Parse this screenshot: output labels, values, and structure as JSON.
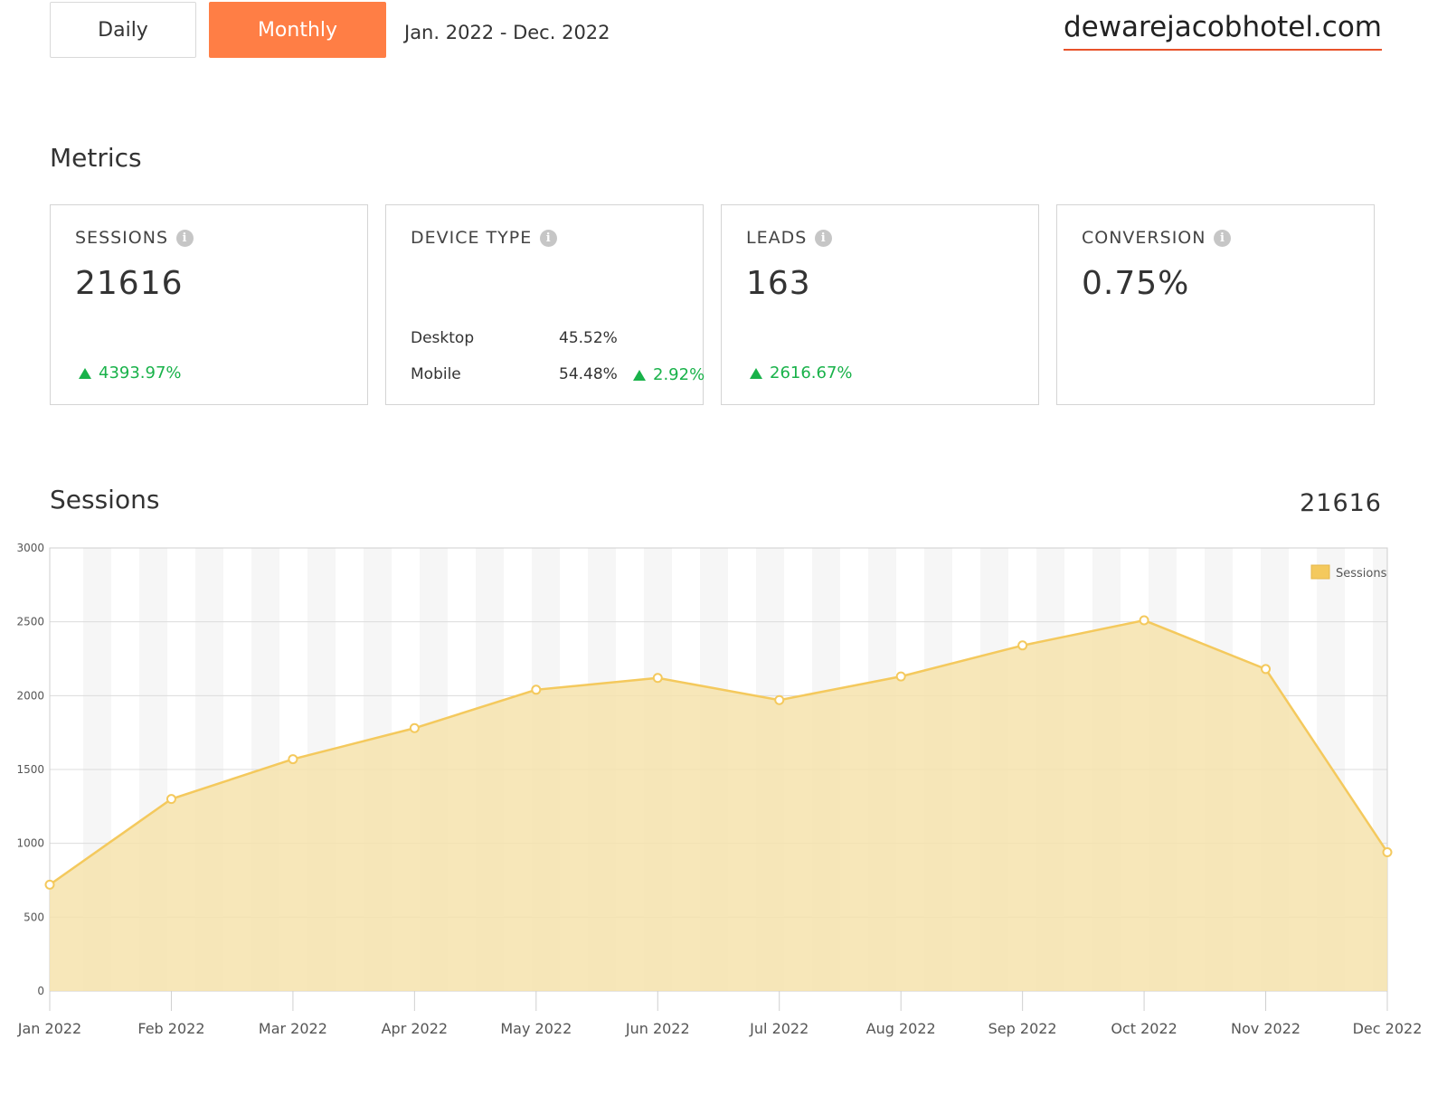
{
  "toolbar": {
    "daily_label": "Daily",
    "monthly_label": "Monthly",
    "date_range": "Jan. 2022 - Dec. 2022",
    "site": "dewarejacobhotel.com",
    "active_color": "#ff7e45",
    "underline_color": "#e8522a"
  },
  "metrics": {
    "title": "Metrics",
    "sessions": {
      "label": "SESSIONS",
      "value": "21616",
      "change": "4393.97%"
    },
    "device": {
      "label": "DEVICE TYPE",
      "desktop_label": "Desktop",
      "desktop_value": "45.52%",
      "mobile_label": "Mobile",
      "mobile_value": "54.48%",
      "mobile_change": "2.92%"
    },
    "leads": {
      "label": "LEADS",
      "value": "163",
      "change": "2616.67%"
    },
    "conversion": {
      "label": "CONVERSION",
      "value": "0.75%"
    },
    "up_color": "#19b24a"
  },
  "sessions_section": {
    "title": "Sessions",
    "total": "21616"
  },
  "chart_data": {
    "type": "area",
    "categories": [
      "Jan 2022",
      "Feb 2022",
      "Mar 2022",
      "Apr 2022",
      "May 2022",
      "Jun 2022",
      "Jul 2022",
      "Aug 2022",
      "Sep 2022",
      "Oct 2022",
      "Nov 2022",
      "Dec 2022"
    ],
    "series": [
      {
        "name": "Sessions",
        "values": [
          720,
          1300,
          1570,
          1780,
          2040,
          2120,
          1970,
          2130,
          2340,
          2510,
          2180,
          940
        ],
        "line_color": "#f4c95d",
        "fill_color": "#f6e3ad"
      }
    ],
    "yticks": [
      0,
      500,
      1000,
      1500,
      2000,
      2500,
      3000
    ],
    "ylim": [
      0,
      3000
    ],
    "grid": true,
    "legend_position": "top-right"
  }
}
